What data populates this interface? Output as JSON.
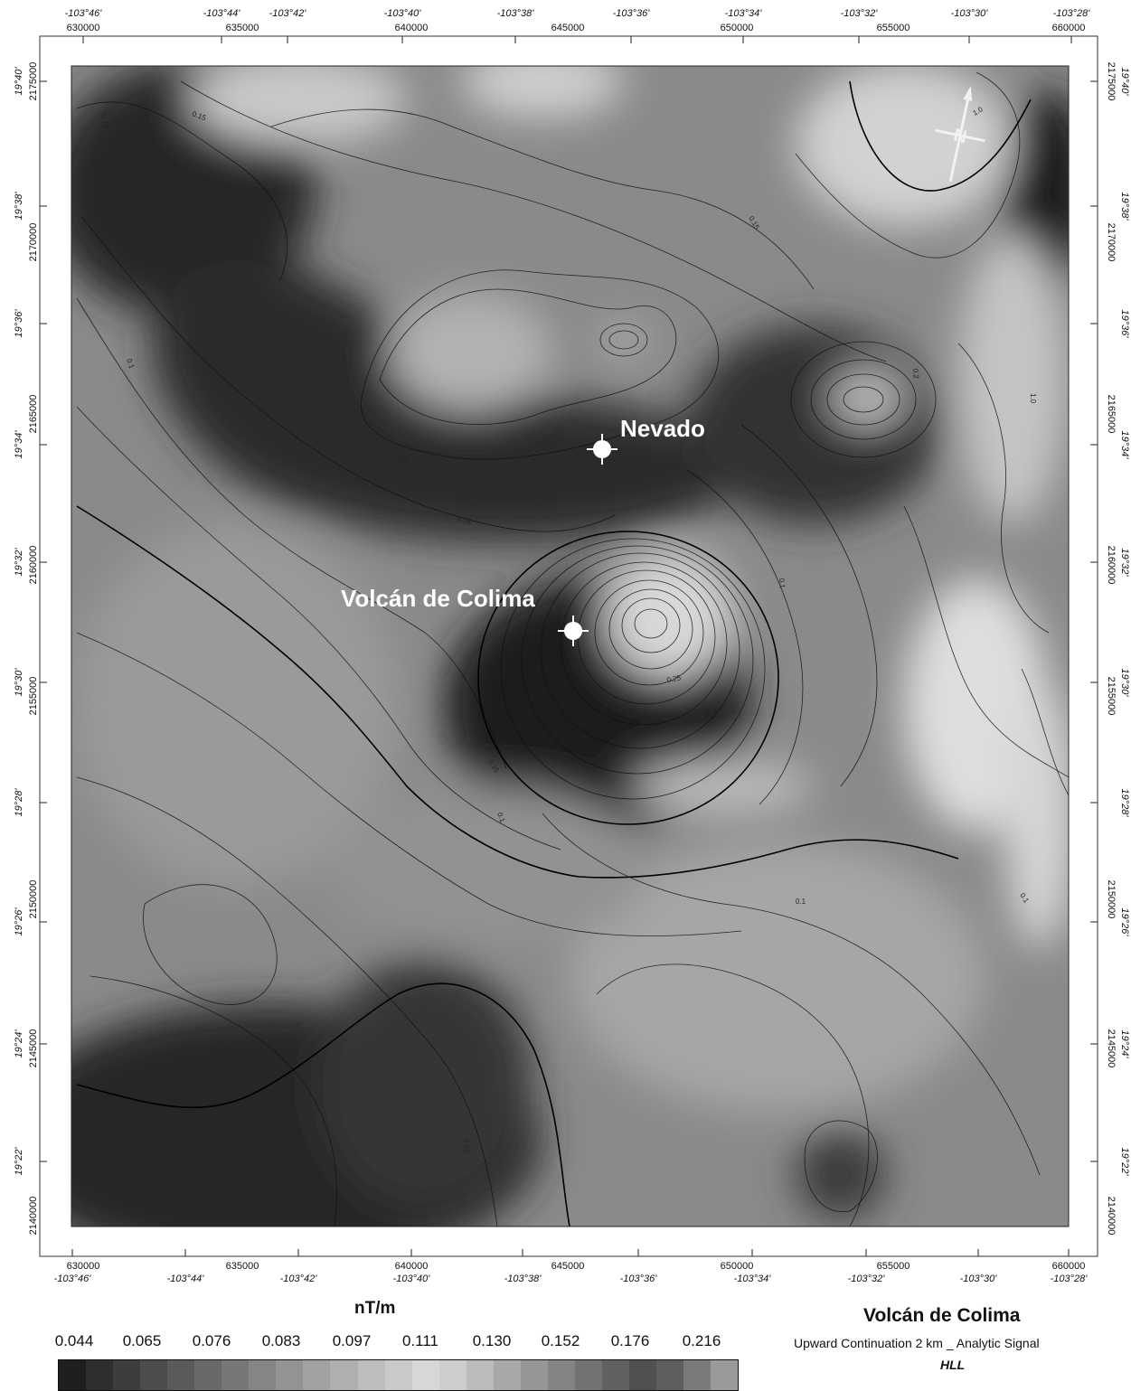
{
  "colors": {
    "background": "#ffffff",
    "marker": "#ffffff",
    "contour": "#111111"
  },
  "axis_ticks": {
    "utm_x": [
      "630000",
      "635000",
      "640000",
      "645000",
      "650000",
      "655000",
      "660000"
    ],
    "lon_top": [
      "-103°46'",
      "-103°44'",
      "-103°42'",
      "-103°40'",
      "-103°38'",
      "-103°36'",
      "-103°34'",
      "-103°32'",
      "-103°30'",
      "-103°28'"
    ],
    "lon_bottom": [
      "-103°46'",
      "-103°44'",
      "-103°42'",
      "-103°40'",
      "-103°38'",
      "-103°36'",
      "-103°34'",
      "-103°32'",
      "-103°30'",
      "-103°28'"
    ],
    "utm_y": [
      "2175000",
      "2170000",
      "2165000",
      "2160000",
      "2155000",
      "2150000",
      "2145000",
      "2140000"
    ],
    "lat": [
      "19°40'",
      "19°38'",
      "19°36'",
      "19°34'",
      "19°32'",
      "19°30'",
      "19°28'",
      "19°26'",
      "19°24'",
      "19°22'"
    ]
  },
  "places": [
    {
      "name": "Nevado",
      "icon": "survey-marker-icon"
    },
    {
      "name": "Volcán de Colima",
      "icon": "survey-marker-icon"
    }
  ],
  "contour_labels": [
    "0.15",
    "0.15",
    "0.1",
    "0.2",
    "0.15",
    "0.15",
    "0.2",
    "0.1",
    "0.25",
    "0.2",
    "0.15",
    "0.1",
    "0.1",
    "1.0",
    "0.05",
    "1.0",
    "0.1"
  ],
  "north_arrow": {
    "icon": "north-arrow-icon",
    "letter": "N"
  },
  "legend": {
    "unit": "nT/m",
    "breaks": [
      "0.044",
      "0.065",
      "0.076",
      "0.083",
      "0.097",
      "0.111",
      "0.130",
      "0.152",
      "0.176",
      "0.216"
    ],
    "swatches": [
      "#1f1f1f",
      "#2e2e2e",
      "#3d3d3d",
      "#4c4c4c",
      "#5a5a5a",
      "#696969",
      "#777777",
      "#858585",
      "#939393",
      "#a1a1a1",
      "#afafaf",
      "#bdbdbd",
      "#cacaca",
      "#d7d7d7",
      "#cdcdcd",
      "#bbbbbb",
      "#a8a8a8",
      "#969696",
      "#848484",
      "#727272",
      "#616161",
      "#505050",
      "#5e5e5e",
      "#7a7a7a",
      "#9a9a9a"
    ]
  },
  "title": "Volcán de Colima",
  "subtitle": "Upward Continuation 2 km _ Analytic Signal",
  "tag": "HLL"
}
